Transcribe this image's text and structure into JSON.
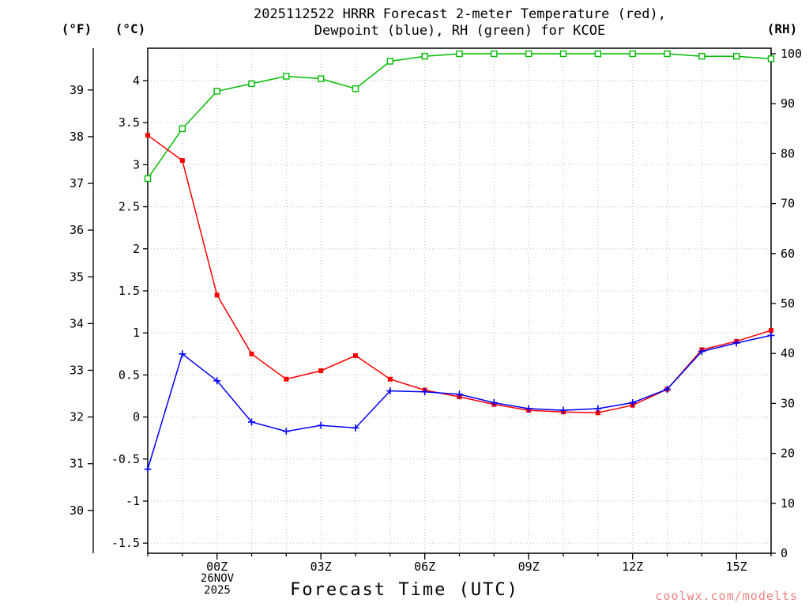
{
  "labels": {
    "f_unit": "(°F)",
    "c_unit": "(°C)",
    "rh_unit": "(RH)",
    "watermark": "coolwx.com/modelts"
  },
  "chart_data": {
    "type": "line",
    "title_line1": "2025112522 HRRR Forecast 2-meter Temperature (red),",
    "title_line2": "Dewpoint (blue), RH (green) for KCOE",
    "station": "KCOE",
    "model_run": "2025112522",
    "xlabel": "Forecast Time (UTC)",
    "x_date_line1": "26NOV",
    "x_date_line2": "2025",
    "times_utc": [
      "22Z",
      "23Z",
      "00Z",
      "01Z",
      "02Z",
      "03Z",
      "04Z",
      "05Z",
      "06Z",
      "07Z",
      "08Z",
      "09Z",
      "10Z",
      "11Z",
      "12Z",
      "13Z",
      "14Z",
      "15Z",
      "16Z"
    ],
    "x_ticks": [
      {
        "hour_index": 2,
        "label": "00Z"
      },
      {
        "hour_index": 5,
        "label": "03Z"
      },
      {
        "hour_index": 8,
        "label": "06Z"
      },
      {
        "hour_index": 11,
        "label": "09Z"
      },
      {
        "hour_index": 14,
        "label": "12Z"
      },
      {
        "hour_index": 17,
        "label": "15Z"
      }
    ],
    "axes": {
      "left_f": {
        "label": "(°F)",
        "ticks": [
          39,
          38,
          37,
          36,
          35,
          34,
          33,
          32,
          31,
          30
        ]
      },
      "left_c": {
        "label": "(°C)",
        "ticks": [
          4,
          3.5,
          3,
          2.5,
          2,
          1.5,
          1,
          0.5,
          0,
          -0.5,
          -1,
          -1.5
        ]
      },
      "right_rh": {
        "label": "(RH)",
        "ticks": [
          100,
          90,
          80,
          70,
          60,
          50,
          40,
          30,
          20,
          10,
          0
        ],
        "range": [
          0,
          100
        ]
      }
    },
    "grid": true,
    "legend": "colors described in title",
    "series": [
      {
        "name": "relative-humidity",
        "color": "#00bb00",
        "axis": "rh",
        "marker": "square-open",
        "values": [
          75,
          85,
          92.5,
          94,
          95.5,
          95,
          93,
          98.5,
          99.5,
          100,
          100,
          100,
          100,
          100,
          100,
          100,
          99.5,
          99.5,
          99
        ]
      },
      {
        "name": "temperature-2m",
        "color": "#ff0000",
        "axis": "c",
        "marker": "square-filled",
        "values": [
          3.35,
          3.05,
          1.45,
          0.75,
          0.45,
          0.55,
          0.73,
          0.45,
          0.32,
          0.24,
          0.15,
          0.08,
          0.06,
          0.05,
          0.14,
          0.33,
          0.8,
          0.9,
          1.03
        ]
      },
      {
        "name": "dewpoint-2m",
        "color": "#0000ff",
        "axis": "c",
        "marker": "plus",
        "values": [
          -0.62,
          0.75,
          0.43,
          -0.06,
          -0.17,
          -0.1,
          -0.13,
          0.31,
          0.3,
          0.27,
          0.17,
          0.1,
          0.08,
          0.1,
          0.17,
          0.33,
          0.78,
          0.88,
          0.97
        ]
      }
    ]
  }
}
